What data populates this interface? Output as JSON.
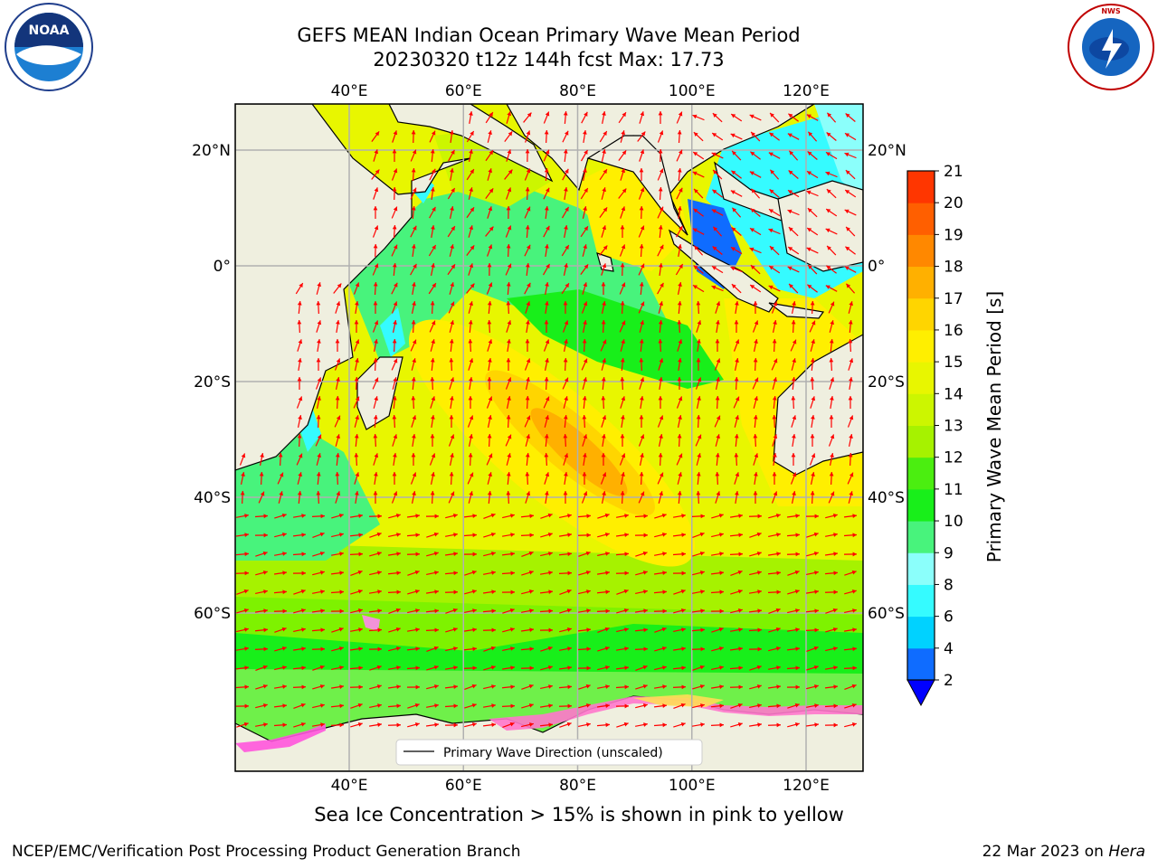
{
  "title": {
    "line1": "GEFS MEAN Indian Ocean Primary Wave Mean Period",
    "line2": "20230320 t12z 144h fcst   Max: 17.73"
  },
  "logos": {
    "left": "noaa-logo",
    "left_text": "NOAA",
    "right": "nws-logo",
    "right_text": "NATIONAL WEATHER SERVICE"
  },
  "map": {
    "lon_range": [
      20,
      130
    ],
    "lat_range": [
      -70,
      28
    ],
    "lon_ticks": [
      {
        "value": 40,
        "label": "40°E"
      },
      {
        "value": 60,
        "label": "60°E"
      },
      {
        "value": 80,
        "label": "80°E"
      },
      {
        "value": 100,
        "label": "100°E"
      },
      {
        "value": 120,
        "label": "120°E"
      }
    ],
    "lat_ticks": [
      {
        "value": 20,
        "label": "20°N"
      },
      {
        "value": 0,
        "label": "0°"
      },
      {
        "value": -20,
        "label": "20°S"
      },
      {
        "value": -40,
        "label": "40°S"
      },
      {
        "value": -60,
        "label": "60°S"
      }
    ],
    "grid": true,
    "land_color": "#efefdf",
    "arrow_color": "#ff0000",
    "legend_label": "Primary Wave Direction (unscaled)",
    "legend_position": "bottom-center"
  },
  "colorbar": {
    "label": "Primary Wave Mean Period [s]",
    "extend": "min",
    "levels": [
      2,
      4,
      6,
      8,
      9,
      10,
      11,
      12,
      13,
      14,
      15,
      16,
      17,
      18,
      19,
      20,
      21
    ],
    "labels": [
      "2",
      "4",
      "6",
      "8",
      "9",
      "10",
      "11",
      "12",
      "13",
      "14",
      "15",
      "16",
      "17",
      "18",
      "19",
      "20",
      "21"
    ],
    "colors": [
      "#0f6cff",
      "#00d2ff",
      "#35fbff",
      "#8bfffb",
      "#48f37c",
      "#18ef1a",
      "#4bee10",
      "#a6f200",
      "#ccf600",
      "#e8f600",
      "#ffef00",
      "#ffd500",
      "#ffb000",
      "#ff8800",
      "#ff5f00",
      "#ff3600",
      "#ff0c00"
    ],
    "under_color": "#0000ff"
  },
  "note": "Sea Ice Concentration > 15% is shown in pink to yellow",
  "footer": {
    "left": "NCEP/EMC/Verification Post Processing Product Generation Branch",
    "date": "22 Mar 2023 on ",
    "host": "Hera"
  }
}
